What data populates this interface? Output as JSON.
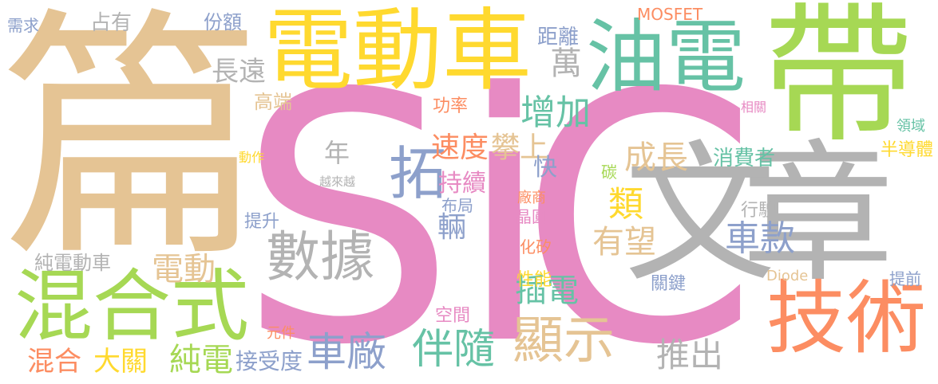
{
  "palette": {
    "pink": "#e78ac3",
    "gray": "#b3b3b3",
    "tan": "#e5c494",
    "yellow": "#ffd92f",
    "green": "#a6d854",
    "teal": "#66c2a5",
    "blue": "#8da0cb",
    "orange": "#fc8d62"
  },
  "words": {
    "sic_s": "S",
    "sic_i": "i",
    "sic_c": "C",
    "pian": "篇",
    "dai": "帶",
    "wen": "文",
    "zhang": "章",
    "diandongche": "電動車",
    "youdian": "油電",
    "jishu": "技術",
    "hunheshi": "混合式",
    "shuju": "數據",
    "xianshi": "顯示",
    "banshui": "伴隨",
    "chechang": "車廠",
    "tuo": "拓",
    "zengjia": "增加",
    "sudu": "速度",
    "panshang": "攀上",
    "chengzhang": "成長",
    "lei": "類",
    "youwang": "有望",
    "chekuan": "車款",
    "chadian": "插電",
    "tuichu": "推出",
    "diandong": "電動",
    "chunchdian": "純電",
    "hunhe": "混合",
    "daguan": "大關",
    "nian": "年",
    "chixu": "持續",
    "kuai": "快",
    "liang": "輛",
    "changyuan": "長遠",
    "wan": "萬",
    "juli": "距離",
    "fene": "份額",
    "zhanyou": "占有",
    "xuqiu": "需求",
    "mosfet": "MOSFET",
    "gaoduan": "高端",
    "gonglv": "功率",
    "xiaofeizhe": "消費者",
    "xiangguan": "相關",
    "lingyu": "領域",
    "bandaoti": "半導體",
    "tan": "碳",
    "hangshi": "行駛",
    "diode": "Diode",
    "tiqian": "提前",
    "guanjian": "關鍵",
    "xingneng": "性能",
    "huagui": "化矽",
    "changshang": "廠商",
    "jingyuan": "晶圓",
    "buju": "布局",
    "kongjian": "空間",
    "yuanjian": "元件",
    "jieshoudu": "接受度",
    "tisheng": "提升",
    "chundiandongche": "純電動車",
    "dongzuo": "動作",
    "yuelaiyue": "越來越"
  }
}
